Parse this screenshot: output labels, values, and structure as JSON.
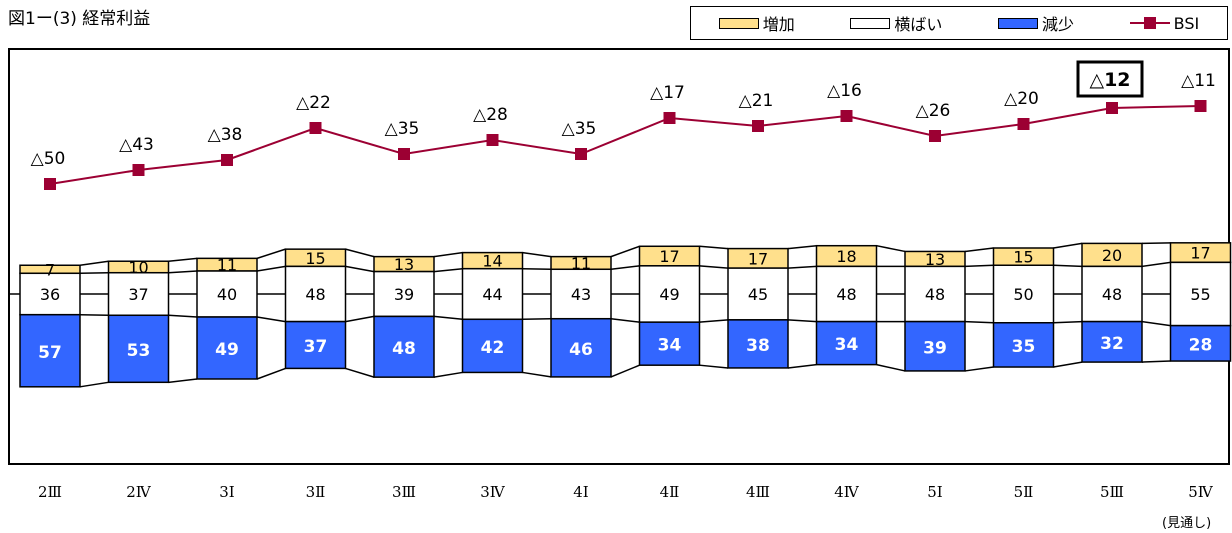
{
  "title": "図1ー(3) 経常利益",
  "note": "(見通し)",
  "colors": {
    "increase": "#FFE08C",
    "flat": "#FFFFFF",
    "decrease": "#3366FF",
    "bsi": "#9C0033",
    "connector": "#000000"
  },
  "legend": [
    {
      "key": "increase",
      "label": "増加",
      "icon": "yellow-swatch-icon"
    },
    {
      "key": "flat",
      "label": "横ばい",
      "icon": "white-swatch-icon"
    },
    {
      "key": "decrease",
      "label": "減少",
      "icon": "blue-swatch-icon"
    },
    {
      "key": "bsi",
      "label": "BSI",
      "icon": "red-square-line-icon"
    }
  ],
  "chart_data": {
    "type": "bar",
    "stacked": true,
    "categories": [
      "2Ⅲ",
      "2Ⅳ",
      "3Ⅰ",
      "3Ⅱ",
      "3Ⅲ",
      "3Ⅳ",
      "4Ⅰ",
      "4Ⅱ",
      "4Ⅲ",
      "4Ⅳ",
      "5Ⅰ",
      "5Ⅱ",
      "5Ⅲ",
      "5Ⅳ"
    ],
    "series": [
      {
        "name": "増加",
        "values": [
          7,
          10,
          11,
          15,
          13,
          14,
          11,
          17,
          17,
          18,
          13,
          15,
          20,
          17
        ]
      },
      {
        "name": "横ばい",
        "values": [
          36,
          37,
          40,
          48,
          39,
          44,
          43,
          49,
          45,
          48,
          48,
          50,
          48,
          55
        ]
      },
      {
        "name": "減少",
        "values": [
          57,
          53,
          49,
          37,
          48,
          42,
          46,
          34,
          38,
          34,
          39,
          35,
          32,
          28
        ]
      }
    ],
    "line": {
      "name": "BSI",
      "values": [
        -50,
        -43,
        -38,
        -22,
        -35,
        -28,
        -35,
        -17,
        -21,
        -16,
        -26,
        -20,
        -12,
        -11
      ],
      "labels": [
        "△50",
        "△43",
        "△38",
        "△22",
        "△35",
        "△28",
        "△35",
        "△17",
        "△21",
        "△16",
        "△26",
        "△20",
        "△12",
        "△11"
      ]
    },
    "highlight_index": 12
  }
}
